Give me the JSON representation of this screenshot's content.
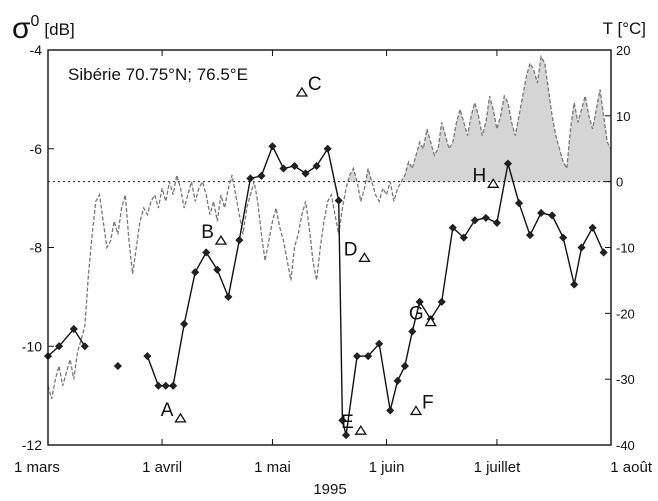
{
  "chart_data": {
    "type": "line",
    "left_axis": {
      "label_symbol": "σ",
      "label_sup": "0",
      "label_unit": "[dB]",
      "ticks": [
        -4,
        -6,
        -8,
        -10,
        -12
      ],
      "tick_labels": [
        "-4",
        "-6",
        "-8",
        "-10",
        "-12"
      ],
      "ylim": [
        -12,
        -4
      ]
    },
    "right_axis": {
      "label": "T [°C]",
      "ticks": [
        20,
        10,
        0,
        -10,
        -20,
        -30,
        -40
      ],
      "tick_labels": [
        "20",
        "10",
        "0",
        "-10",
        "-20",
        "-30",
        "-40"
      ],
      "ylim": [
        -40,
        20
      ]
    },
    "x_axis": {
      "label": "1995",
      "xlim_day": [
        60,
        213
      ],
      "ticks": [
        {
          "day": 60,
          "label": "1 mars"
        },
        {
          "day": 91,
          "label": "1 avril"
        },
        {
          "day": 121,
          "label": "1 mai"
        },
        {
          "day": 152,
          "label": "1 juin"
        },
        {
          "day": 182,
          "label": "1 juillet"
        },
        {
          "day": 213,
          "label": "1 août"
        }
      ]
    },
    "annotation": "Sibérie 70.75°N; 76.5°E",
    "zero_line": {
      "value": 0,
      "axis": "temperature",
      "style": "dotted"
    },
    "series": [
      {
        "axis": "sigma0",
        "style": "solid line with diamond markers",
        "color": "#111111",
        "points": [
          [
            60,
            -10.2
          ],
          [
            63,
            -10.0
          ],
          [
            67,
            -9.65
          ],
          [
            70,
            -10.0
          ],
          [
            79,
            -10.4
          ],
          [
            87,
            -10.2
          ],
          [
            90,
            -10.8
          ],
          [
            92,
            -10.8
          ],
          [
            94,
            -10.8
          ],
          [
            97,
            -9.55
          ],
          [
            100,
            -8.5
          ],
          [
            103,
            -8.1
          ],
          [
            106,
            -8.45
          ],
          [
            109,
            -9.0
          ],
          [
            112,
            -7.85
          ],
          [
            115,
            -6.6
          ],
          [
            118,
            -6.55
          ],
          [
            121,
            -5.95
          ],
          [
            124,
            -6.4
          ],
          [
            127,
            -6.35
          ],
          [
            130,
            -6.5
          ],
          [
            133,
            -6.35
          ],
          [
            136,
            -6.0
          ],
          [
            139,
            -7.05
          ],
          [
            140,
            -11.5
          ],
          [
            141,
            -11.8
          ],
          [
            144,
            -10.2
          ],
          [
            147,
            -10.2
          ],
          [
            150,
            -9.95
          ],
          [
            153,
            -11.3
          ],
          [
            155,
            -10.7
          ],
          [
            157,
            -10.4
          ],
          [
            159,
            -9.7
          ],
          [
            161,
            -9.1
          ],
          [
            164,
            -9.45
          ],
          [
            167,
            -9.1
          ],
          [
            170,
            -7.6
          ],
          [
            173,
            -7.8
          ],
          [
            176,
            -7.45
          ],
          [
            179,
            -7.4
          ],
          [
            182,
            -7.5
          ],
          [
            185,
            -6.3
          ],
          [
            188,
            -7.1
          ],
          [
            191,
            -7.75
          ],
          [
            194,
            -7.3
          ],
          [
            197,
            -7.35
          ],
          [
            200,
            -7.8
          ],
          [
            203,
            -8.75
          ],
          [
            205,
            -8.0
          ],
          [
            208,
            -7.6
          ],
          [
            211,
            -8.1
          ]
        ]
      },
      {
        "axis": "temperature",
        "style": "dashed line, area above 0 °C shaded",
        "color": "#777777",
        "fill_color": "#d0d0d0",
        "points": [
          [
            60,
            -31
          ],
          [
            61,
            -33
          ],
          [
            62,
            -30
          ],
          [
            63,
            -28
          ],
          [
            64,
            -31
          ],
          [
            65,
            -29
          ],
          [
            66,
            -27
          ],
          [
            67,
            -30
          ],
          [
            68,
            -26
          ],
          [
            69,
            -24
          ],
          [
            70,
            -22
          ],
          [
            71,
            -14
          ],
          [
            72,
            -8
          ],
          [
            73,
            -3
          ],
          [
            74,
            -2
          ],
          [
            75,
            -6
          ],
          [
            76,
            -10
          ],
          [
            77,
            -9
          ],
          [
            78,
            -6
          ],
          [
            79,
            -8
          ],
          [
            80,
            -4
          ],
          [
            81,
            -2
          ],
          [
            82,
            -9
          ],
          [
            83,
            -14
          ],
          [
            84,
            -10
          ],
          [
            85,
            -6
          ],
          [
            86,
            -4
          ],
          [
            87,
            -5
          ],
          [
            88,
            -3
          ],
          [
            89,
            -2
          ],
          [
            90,
            -4
          ],
          [
            91,
            -1
          ],
          [
            92,
            -3
          ],
          [
            93,
            0
          ],
          [
            94,
            -2
          ],
          [
            95,
            1
          ],
          [
            96,
            -1
          ],
          [
            97,
            -4
          ],
          [
            98,
            -2
          ],
          [
            99,
            0
          ],
          [
            100,
            -3
          ],
          [
            101,
            -1
          ],
          [
            102,
            0
          ],
          [
            103,
            -2
          ],
          [
            104,
            -5
          ],
          [
            105,
            -3
          ],
          [
            106,
            -6
          ],
          [
            107,
            -2
          ],
          [
            108,
            -4
          ],
          [
            109,
            -1
          ],
          [
            110,
            1
          ],
          [
            111,
            -2
          ],
          [
            112,
            -5
          ],
          [
            113,
            -8
          ],
          [
            114,
            -4
          ],
          [
            115,
            -2
          ],
          [
            116,
            0
          ],
          [
            117,
            -3
          ],
          [
            118,
            -8
          ],
          [
            119,
            -12
          ],
          [
            120,
            -9
          ],
          [
            121,
            -6
          ],
          [
            122,
            -4
          ],
          [
            123,
            -7
          ],
          [
            124,
            -9
          ],
          [
            125,
            -12
          ],
          [
            126,
            -15
          ],
          [
            127,
            -10
          ],
          [
            128,
            -8
          ],
          [
            129,
            -5
          ],
          [
            130,
            -3
          ],
          [
            131,
            -7
          ],
          [
            132,
            -12
          ],
          [
            133,
            -15
          ],
          [
            134,
            -10
          ],
          [
            135,
            -6
          ],
          [
            136,
            -3
          ],
          [
            137,
            -2
          ],
          [
            138,
            -5
          ],
          [
            139,
            -8
          ],
          [
            140,
            -4
          ],
          [
            141,
            -1
          ],
          [
            142,
            1
          ],
          [
            143,
            2
          ],
          [
            144,
            0
          ],
          [
            145,
            -3
          ],
          [
            146,
            -1
          ],
          [
            147,
            2
          ],
          [
            148,
            0
          ],
          [
            149,
            -2
          ],
          [
            150,
            -3
          ],
          [
            151,
            -1
          ],
          [
            152,
            -2
          ],
          [
            153,
            0
          ],
          [
            154,
            -3
          ],
          [
            155,
            -1
          ],
          [
            156,
            0
          ],
          [
            157,
            1
          ],
          [
            158,
            3
          ],
          [
            159,
            2
          ],
          [
            160,
            4
          ],
          [
            161,
            6
          ],
          [
            162,
            5
          ],
          [
            163,
            8
          ],
          [
            164,
            6
          ],
          [
            165,
            4
          ],
          [
            166,
            5
          ],
          [
            167,
            9
          ],
          [
            168,
            7
          ],
          [
            169,
            5
          ],
          [
            170,
            6
          ],
          [
            171,
            9
          ],
          [
            172,
            11
          ],
          [
            173,
            9
          ],
          [
            174,
            7
          ],
          [
            175,
            10
          ],
          [
            176,
            12
          ],
          [
            177,
            10
          ],
          [
            178,
            7
          ],
          [
            179,
            9
          ],
          [
            180,
            13
          ],
          [
            181,
            11
          ],
          [
            182,
            8
          ],
          [
            183,
            10
          ],
          [
            184,
            13
          ],
          [
            185,
            12
          ],
          [
            186,
            9
          ],
          [
            187,
            7
          ],
          [
            188,
            10
          ],
          [
            189,
            13
          ],
          [
            190,
            16
          ],
          [
            191,
            18
          ],
          [
            192,
            17
          ],
          [
            193,
            15
          ],
          [
            194,
            19
          ],
          [
            195,
            18
          ],
          [
            196,
            14
          ],
          [
            197,
            10
          ],
          [
            198,
            7
          ],
          [
            199,
            5
          ],
          [
            200,
            3
          ],
          [
            201,
            2
          ],
          [
            202,
            8
          ],
          [
            203,
            12
          ],
          [
            204,
            9
          ],
          [
            205,
            11
          ],
          [
            206,
            13
          ],
          [
            207,
            10
          ],
          [
            208,
            8
          ],
          [
            209,
            11
          ],
          [
            210,
            14
          ],
          [
            211,
            10
          ],
          [
            212,
            6
          ],
          [
            213,
            5
          ]
        ]
      }
    ],
    "event_markers": [
      {
        "label": "A",
        "day": 96,
        "sigma0": -11.45,
        "label_side": "left"
      },
      {
        "label": "B",
        "day": 107,
        "sigma0": -7.85,
        "label_side": "left"
      },
      {
        "label": "C",
        "day": 129,
        "sigma0": -4.85,
        "label_side": "right"
      },
      {
        "label": "D",
        "day": 146,
        "sigma0": -8.2,
        "label_side": "left"
      },
      {
        "label": "E",
        "day": 145,
        "sigma0": -11.7,
        "label_side": "left"
      },
      {
        "label": "F",
        "day": 160,
        "sigma0": -11.3,
        "label_side": "right"
      },
      {
        "label": "G",
        "day": 164,
        "sigma0": -9.5,
        "label_side": "left"
      },
      {
        "label": "H",
        "day": 181,
        "sigma0": -6.7,
        "label_side": "left"
      }
    ]
  }
}
